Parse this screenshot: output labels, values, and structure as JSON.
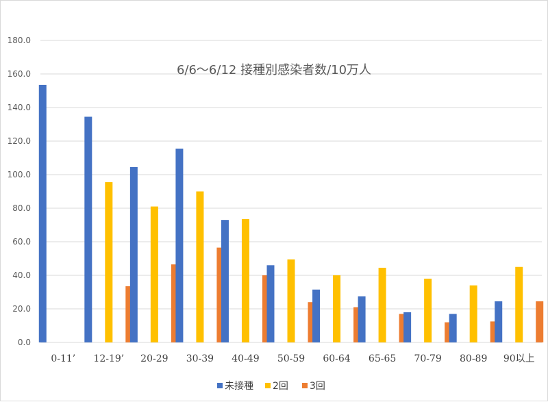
{
  "chart_data": {
    "type": "bar",
    "title": "6/6～6/12 接種別感染者数/10万人",
    "categories": [
      "0-11’",
      "12-19’",
      "20-29",
      "30-39",
      "40-49",
      "50-59",
      "60-64",
      "65-65",
      "70-79",
      "80-89",
      "90以上"
    ],
    "series": [
      {
        "name": "未接種",
        "color": "#4472c4",
        "values": [
          153.5,
          134.5,
          104.5,
          115.5,
          73.0,
          46.0,
          31.5,
          27.5,
          18.0,
          17.0,
          24.5
        ]
      },
      {
        "name": "2回",
        "color": "#ffc000",
        "values": [
          null,
          95.5,
          81.0,
          90.0,
          73.5,
          49.5,
          40.0,
          44.5,
          38.0,
          34.0,
          45.0
        ]
      },
      {
        "name": "3回",
        "color": "#ed7d31",
        "values": [
          null,
          33.5,
          46.5,
          56.5,
          40.0,
          24.0,
          21.0,
          17.0,
          12.0,
          12.5,
          24.5
        ]
      }
    ],
    "yticks": [
      "0.0",
      "20.0",
      "40.0",
      "60.0",
      "80.0",
      "100.0",
      "120.0",
      "140.0",
      "160.0",
      "180.0"
    ],
    "ylim": [
      0,
      180
    ],
    "grid": true,
    "legend": "bottom"
  }
}
